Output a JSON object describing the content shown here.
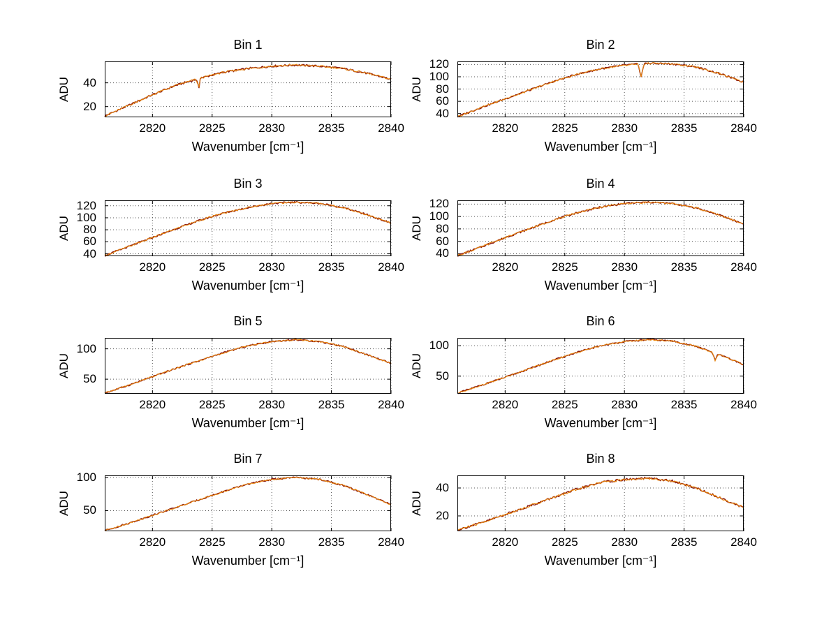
{
  "style": {
    "background": "#ffffff",
    "dark_color": "#8b1a10",
    "orange_color": "#e8860d",
    "grid_color": "#555555",
    "axis_color": "#000000"
  },
  "chart_data": [
    {
      "type": "line",
      "title": "Bin 1",
      "xlabel": "Wavenumber [cm⁻¹]",
      "ylabel": "ADU",
      "xlim": [
        2816,
        2840
      ],
      "ylim": [
        11,
        58
      ],
      "xticks": [
        2820,
        2825,
        2830,
        2835,
        2840
      ],
      "yticks": [
        20,
        40
      ],
      "x": [
        2816,
        2818,
        2820,
        2822,
        2824,
        2826,
        2828,
        2830,
        2832,
        2834,
        2836,
        2838,
        2840
      ],
      "y": [
        12,
        21,
        30,
        38,
        44,
        49,
        52,
        54,
        55,
        54,
        52,
        48,
        43
      ],
      "spikes": [
        {
          "x": 2823.9,
          "y": 36
        }
      ],
      "noise": 0.8,
      "series_names": [
        "dark-red-trace",
        "orange-trace"
      ],
      "grid": true
    },
    {
      "type": "line",
      "title": "Bin 2",
      "xlabel": "Wavenumber [cm⁻¹]",
      "ylabel": "ADU",
      "xlim": [
        2816,
        2840
      ],
      "ylim": [
        34,
        125
      ],
      "xticks": [
        2820,
        2825,
        2830,
        2835,
        2840
      ],
      "yticks": [
        40,
        60,
        80,
        100,
        120
      ],
      "x": [
        2816,
        2818,
        2820,
        2822,
        2824,
        2826,
        2828,
        2830,
        2832,
        2834,
        2836,
        2838,
        2840
      ],
      "y": [
        35,
        50,
        64,
        78,
        92,
        104,
        113,
        119,
        122,
        121,
        116,
        105,
        91
      ],
      "spikes": [
        {
          "x": 2831.4,
          "y": 100
        }
      ],
      "noise": 1.4,
      "series_names": [
        "dark-red-trace",
        "orange-trace"
      ],
      "grid": true
    },
    {
      "type": "line",
      "title": "Bin 3",
      "xlabel": "Wavenumber [cm⁻¹]",
      "ylabel": "ADU",
      "xlim": [
        2816,
        2840
      ],
      "ylim": [
        36,
        129
      ],
      "xticks": [
        2820,
        2825,
        2830,
        2835,
        2840
      ],
      "yticks": [
        40,
        60,
        80,
        100,
        120
      ],
      "x": [
        2816,
        2818,
        2820,
        2822,
        2824,
        2826,
        2828,
        2830,
        2832,
        2834,
        2836,
        2838,
        2840
      ],
      "y": [
        37,
        52,
        67,
        82,
        96,
        108,
        117,
        124,
        126,
        124,
        117,
        105,
        91
      ],
      "spikes": [],
      "noise": 1.4,
      "series_names": [
        "dark-red-trace",
        "orange-trace"
      ],
      "grid": true
    },
    {
      "type": "line",
      "title": "Bin 4",
      "xlabel": "Wavenumber [cm⁻¹]",
      "ylabel": "ADU",
      "xlim": [
        2816,
        2840
      ],
      "ylim": [
        36,
        126
      ],
      "xticks": [
        2820,
        2825,
        2830,
        2835,
        2840
      ],
      "yticks": [
        40,
        60,
        80,
        100,
        120
      ],
      "x": [
        2816,
        2818,
        2820,
        2822,
        2824,
        2826,
        2828,
        2830,
        2832,
        2834,
        2836,
        2838,
        2840
      ],
      "y": [
        37,
        51,
        66,
        80,
        94,
        106,
        115,
        121,
        123,
        121,
        114,
        102,
        88
      ],
      "spikes": [],
      "noise": 1.4,
      "series_names": [
        "dark-red-trace",
        "orange-trace"
      ],
      "grid": true
    },
    {
      "type": "line",
      "title": "Bin 5",
      "xlabel": "Wavenumber [cm⁻¹]",
      "ylabel": "ADU",
      "xlim": [
        2816,
        2840
      ],
      "ylim": [
        26,
        118
      ],
      "xticks": [
        2820,
        2825,
        2830,
        2835,
        2840
      ],
      "yticks": [
        50,
        100
      ],
      "x": [
        2816,
        2818,
        2820,
        2822,
        2824,
        2826,
        2828,
        2830,
        2832,
        2834,
        2836,
        2838,
        2840
      ],
      "y": [
        27,
        40,
        54,
        68,
        81,
        94,
        105,
        112,
        115,
        112,
        104,
        90,
        76
      ],
      "spikes": [],
      "noise": 1.2,
      "series_names": [
        "dark-red-trace",
        "orange-trace"
      ],
      "grid": true
    },
    {
      "type": "line",
      "title": "Bin 6",
      "xlabel": "Wavenumber [cm⁻¹]",
      "ylabel": "ADU",
      "xlim": [
        2816,
        2840
      ],
      "ylim": [
        21,
        113
      ],
      "xticks": [
        2820,
        2825,
        2830,
        2835,
        2840
      ],
      "yticks": [
        50,
        100
      ],
      "x": [
        2816,
        2818,
        2820,
        2822,
        2824,
        2826,
        2828,
        2830,
        2832,
        2834,
        2836,
        2838,
        2840
      ],
      "y": [
        22,
        35,
        48,
        62,
        76,
        89,
        100,
        107,
        110,
        108,
        99,
        85,
        69
      ],
      "spikes": [
        {
          "x": 2837.6,
          "y": 76
        }
      ],
      "noise": 1.2,
      "series_names": [
        "dark-red-trace",
        "orange-trace"
      ],
      "grid": true
    },
    {
      "type": "line",
      "title": "Bin 7",
      "xlabel": "Wavenumber [cm⁻¹]",
      "ylabel": "ADU",
      "xlim": [
        2816,
        2840
      ],
      "ylim": [
        19,
        103
      ],
      "xticks": [
        2820,
        2825,
        2830,
        2835,
        2840
      ],
      "yticks": [
        50,
        100
      ],
      "x": [
        2816,
        2818,
        2820,
        2822,
        2824,
        2826,
        2828,
        2830,
        2832,
        2834,
        2836,
        2838,
        2840
      ],
      "y": [
        20,
        31,
        43,
        55,
        67,
        79,
        90,
        97,
        100,
        97,
        88,
        74,
        59
      ],
      "spikes": [],
      "noise": 1.1,
      "series_names": [
        "dark-red-trace",
        "orange-trace"
      ],
      "grid": true
    },
    {
      "type": "line",
      "title": "Bin 8",
      "xlabel": "Wavenumber [cm⁻¹]",
      "ylabel": "ADU",
      "xlim": [
        2816,
        2840
      ],
      "ylim": [
        9,
        49
      ],
      "xticks": [
        2820,
        2825,
        2830,
        2835,
        2840
      ],
      "yticks": [
        20,
        40
      ],
      "x": [
        2816,
        2818,
        2820,
        2822,
        2824,
        2826,
        2828,
        2830,
        2832,
        2834,
        2836,
        2838,
        2840
      ],
      "y": [
        10,
        15,
        21,
        27,
        33,
        39,
        44,
        46,
        47,
        45,
        40,
        33,
        26
      ],
      "spikes": [],
      "noise": 0.8,
      "series_names": [
        "dark-red-trace",
        "orange-trace"
      ],
      "grid": true
    }
  ]
}
